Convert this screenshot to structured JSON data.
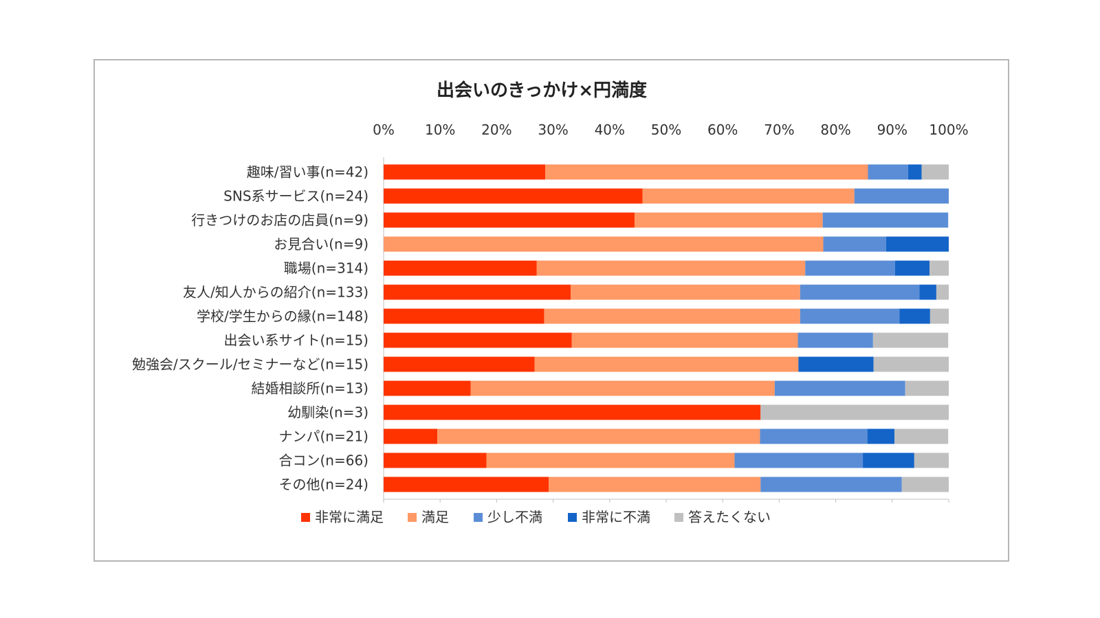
{
  "chart_data": {
    "type": "bar",
    "orientation": "horizontal",
    "stacked": "percent",
    "title": "出会いのきっかけ×円満度",
    "xlim": [
      0,
      100
    ],
    "x_ticks": [
      "0%",
      "10%",
      "20%",
      "30%",
      "40%",
      "50%",
      "60%",
      "70%",
      "80%",
      "90%",
      "100%"
    ],
    "legend_position": "bottom",
    "grid": false,
    "categories": [
      "趣味/習い事(n=42)",
      "SNS系サービス(n=24)",
      "行きつけのお店の店員(n=9)",
      "お見合い(n=9)",
      "職場(n=314)",
      "友人/知人からの紹介(n=133)",
      "学校/学生からの縁(n=148)",
      "出会い系サイト(n=15)",
      "勉強会/スクール/セミナーなど(n=15)",
      "結婚相談所(n=13)",
      "幼馴染(n=3)",
      "ナンパ(n=21)",
      "合コン(n=66)",
      "その他(n=24)"
    ],
    "series": [
      {
        "name": "非常に満足",
        "color": "#ff3300",
        "values": [
          28.6,
          45.8,
          44.4,
          0,
          27.1,
          33.1,
          28.4,
          33.3,
          26.7,
          15.4,
          66.7,
          9.5,
          18.2,
          29.2
        ]
      },
      {
        "name": "満足",
        "color": "#ff9966",
        "values": [
          57.1,
          37.5,
          33.3,
          77.8,
          47.5,
          40.6,
          45.3,
          40.0,
          46.7,
          53.8,
          0,
          57.1,
          43.9,
          37.5
        ]
      },
      {
        "name": "少し不満",
        "color": "#5b8dd6",
        "values": [
          7.1,
          16.7,
          22.2,
          11.1,
          15.9,
          21.1,
          17.6,
          13.3,
          0,
          23.1,
          0,
          19.0,
          22.7,
          25.0
        ]
      },
      {
        "name": "非常に不満",
        "color": "#1464c8",
        "values": [
          2.4,
          0,
          0,
          11.1,
          6.1,
          3.0,
          5.4,
          0,
          13.3,
          0,
          0,
          4.8,
          9.1,
          0
        ]
      },
      {
        "name": "答えたくない",
        "color": "#c0c0c0",
        "values": [
          4.8,
          0,
          0,
          0,
          3.5,
          2.3,
          3.4,
          13.3,
          13.3,
          7.7,
          33.3,
          9.5,
          6.1,
          8.3
        ]
      }
    ]
  }
}
